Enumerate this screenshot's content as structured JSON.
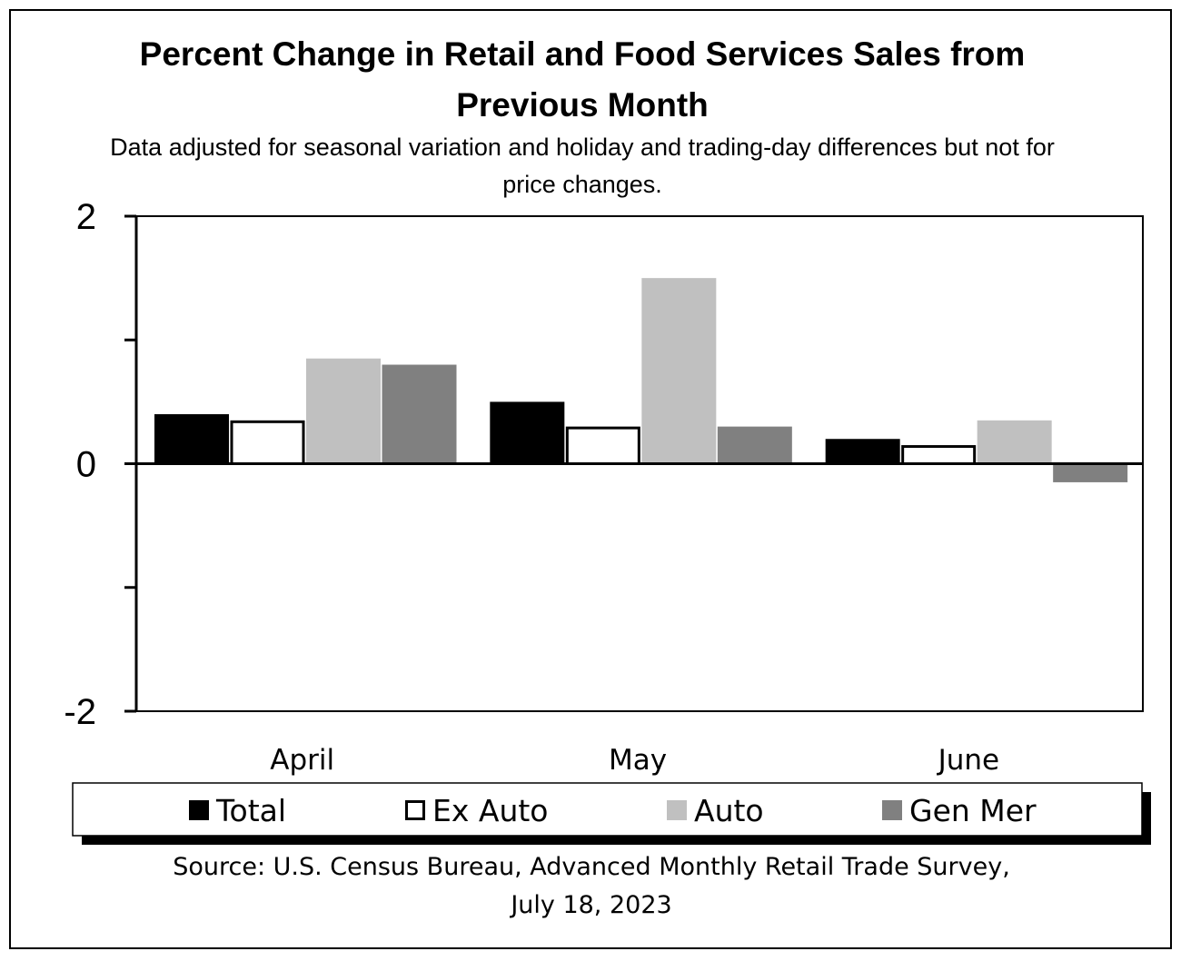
{
  "chart_data": {
    "type": "bar",
    "title": "Percent Change in Retail and Food Services Sales from Previous Month",
    "title_lines": [
      "Percent Change in Retail and Food Services Sales from",
      "Previous Month"
    ],
    "subtitle_lines": [
      "Data adjusted for seasonal variation and holiday and trading-day differences but not for",
      "price changes."
    ],
    "categories": [
      "April",
      "May",
      "June"
    ],
    "series": [
      {
        "name": "Total",
        "color": "#000000",
        "values": [
          0.4,
          0.5,
          0.2
        ]
      },
      {
        "name": "Ex Auto",
        "color": "#ffffff",
        "values": [
          0.35,
          0.3,
          0.15
        ]
      },
      {
        "name": "Auto",
        "color": "#c0c0c0",
        "values": [
          0.85,
          1.5,
          0.35
        ]
      },
      {
        "name": "Gen Mer",
        "color": "#808080",
        "values": [
          0.8,
          0.3,
          -0.15
        ]
      }
    ],
    "ylim": [
      -2,
      2
    ],
    "yticks": [
      2,
      1,
      0,
      -1,
      -2
    ],
    "ytick_labels": [
      "2",
      "",
      "0",
      "",
      "-2"
    ],
    "xlabel": "",
    "ylabel": "",
    "grid": false,
    "legend_position": "bottom",
    "source_lines": [
      "Source: U.S. Census Bureau, Advanced Monthly Retail Trade Survey,",
      "July 18, 2023"
    ]
  }
}
